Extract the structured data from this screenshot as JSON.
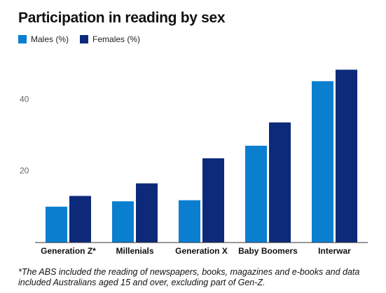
{
  "colors": {
    "males": "#0a7fd0",
    "females": "#0d2a7a"
  },
  "chart_data": {
    "type": "bar",
    "title": "Participation in reading by sex",
    "categories": [
      "Generation Z*",
      "Millenials",
      "Generation X",
      "Baby Boomers",
      "Interwar"
    ],
    "series": [
      {
        "name": "Males (%)",
        "values": [
          10,
          11.5,
          11.8,
          27,
          45
        ]
      },
      {
        "name": "Females (%)",
        "values": [
          13,
          16.5,
          23.5,
          33.5,
          48.2
        ]
      }
    ],
    "yticks": [
      20,
      40
    ],
    "ylim": [
      0,
      52
    ],
    "grid": false,
    "legend": "top-left"
  },
  "footnote": "*The ABS included the reading of newspapers, books, magazines and e-books and data included Australians aged 15 and over, excluding part of Gen-Z."
}
